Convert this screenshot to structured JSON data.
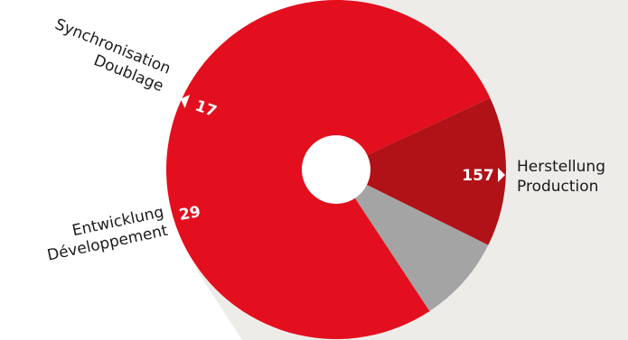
{
  "chart_data": {
    "type": "pie",
    "donut": true,
    "series": [
      {
        "values": [
          157,
          29,
          17
        ],
        "labels": [
          [
            "Herstellung",
            "Production"
          ],
          [
            "Entwicklung",
            "Développement"
          ],
          [
            "Synchronisation",
            "Doublage"
          ]
        ],
        "colors": [
          "#e30f1e",
          "#b01217",
          "#a4a4a4"
        ]
      }
    ],
    "value_labels": [
      "157",
      "29",
      "17"
    ],
    "background_colors": [
      "#ffffff",
      "#eeece9"
    ],
    "value_label_color": "#ffffff",
    "category_label_color": "#1a1a1a"
  }
}
